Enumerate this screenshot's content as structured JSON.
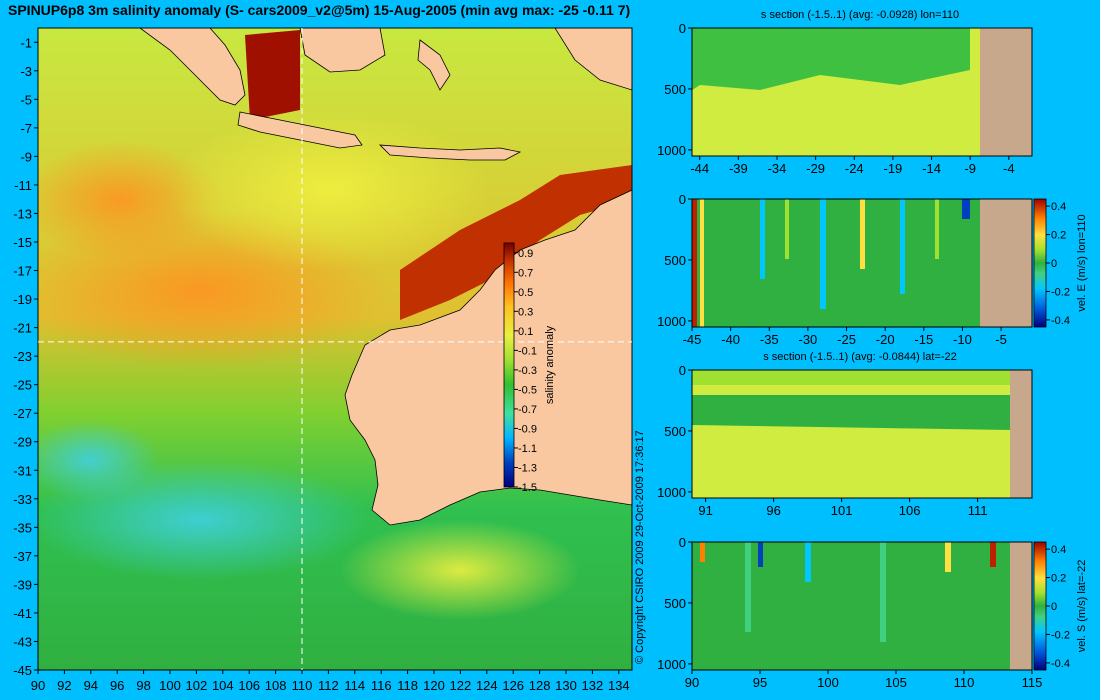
{
  "main_title": "SPINUP6p8 3m salinity anomaly (S- cars2009_v2@5m) 15-Aug-2005 (min avg max: -25 -0.11 7)",
  "copyright": "© Copyright CSIRO 2009    29-Oct-2009 17:36:17",
  "colors": {
    "background": "#00bfff",
    "land": "#fac8a0",
    "section_land": "#c8a88c",
    "colormap": [
      "#00007f",
      "#0040c0",
      "#00b4ff",
      "#40e0a0",
      "#30c030",
      "#a0e030",
      "#e8f040",
      "#ffc020",
      "#ff7000",
      "#c03000",
      "#700000"
    ]
  },
  "chart_data": [
    {
      "type": "heatmap",
      "title": "",
      "xlabel": "",
      "ylabel": "",
      "xlim": [
        90,
        135
      ],
      "ylim": [
        -45,
        0
      ],
      "x_ticks": [
        "90",
        "92",
        "94",
        "96",
        "98",
        "100",
        "102",
        "104",
        "106",
        "108",
        "110",
        "112",
        "114",
        "116",
        "118",
        "120",
        "122",
        "124",
        "126",
        "128",
        "130",
        "132",
        "134"
      ],
      "y_ticks": [
        "-1",
        "-3",
        "-5",
        "-7",
        "-9",
        "-11",
        "-13",
        "-15",
        "-17",
        "-19",
        "-21",
        "-23",
        "-25",
        "-27",
        "-29",
        "-31",
        "-33",
        "-35",
        "-37",
        "-39",
        "-41",
        "-43",
        "-45"
      ],
      "section_lines": {
        "lon": 110,
        "lat": -22
      },
      "colorbar": {
        "label": "salinity anomaly",
        "ticks": [
          "0.9",
          "0.7",
          "0.5",
          "0.3",
          "0.1",
          "-0.1",
          "-0.3",
          "-0.5",
          "-0.7",
          "-0.9",
          "-1.1",
          "-1.3",
          "-1.5"
        ],
        "range": [
          -1.5,
          1.0
        ]
      }
    },
    {
      "type": "heatmap",
      "title": "s section (-1.5..1) (avg: -0.0928) lon=110",
      "x_ticks": [
        "-44",
        "-39",
        "-34",
        "-29",
        "-24",
        "-19",
        "-14",
        "-9",
        "-4"
      ],
      "xlim": [
        -45,
        -1
      ],
      "y_ticks": [
        "0",
        "500",
        "1000"
      ],
      "ylim": [
        0,
        1050
      ],
      "land_from": -8
    },
    {
      "type": "heatmap",
      "title": "",
      "x_ticks": [
        "-45",
        "-40",
        "-35",
        "-30",
        "-25",
        "-20",
        "-15",
        "-10",
        "-5"
      ],
      "xlim": [
        -45,
        -1
      ],
      "y_ticks": [
        "0",
        "500",
        "1000"
      ],
      "ylim": [
        0,
        1050
      ],
      "land_from": -8,
      "colorbar": {
        "label": "vel. E (m/s) lon=110",
        "ticks": [
          "0.4",
          "0.2",
          "0",
          "-0.2",
          "-0.4"
        ],
        "range": [
          -0.45,
          0.45
        ]
      }
    },
    {
      "type": "heatmap",
      "title": "s section (-1.5..1) (avg: -0.0844) lat=-22",
      "x_ticks": [
        "91",
        "96",
        "101",
        "106",
        "111"
      ],
      "xlim": [
        90,
        115
      ],
      "y_ticks": [
        "0",
        "500",
        "1000"
      ],
      "ylim": [
        0,
        1050
      ],
      "land_from": 113.5
    },
    {
      "type": "heatmap",
      "title": "",
      "x_ticks": [
        "90",
        "95",
        "100",
        "105",
        "110",
        "115"
      ],
      "xlim": [
        90,
        115
      ],
      "y_ticks": [
        "0",
        "500",
        "1000"
      ],
      "ylim": [
        0,
        1050
      ],
      "land_from": 113.5,
      "colorbar": {
        "label": "vel. S (m/s) lat=-22",
        "ticks": [
          "0.4",
          "0.2",
          "0",
          "-0.2",
          "-0.4"
        ],
        "range": [
          -0.45,
          0.45
        ]
      }
    }
  ]
}
